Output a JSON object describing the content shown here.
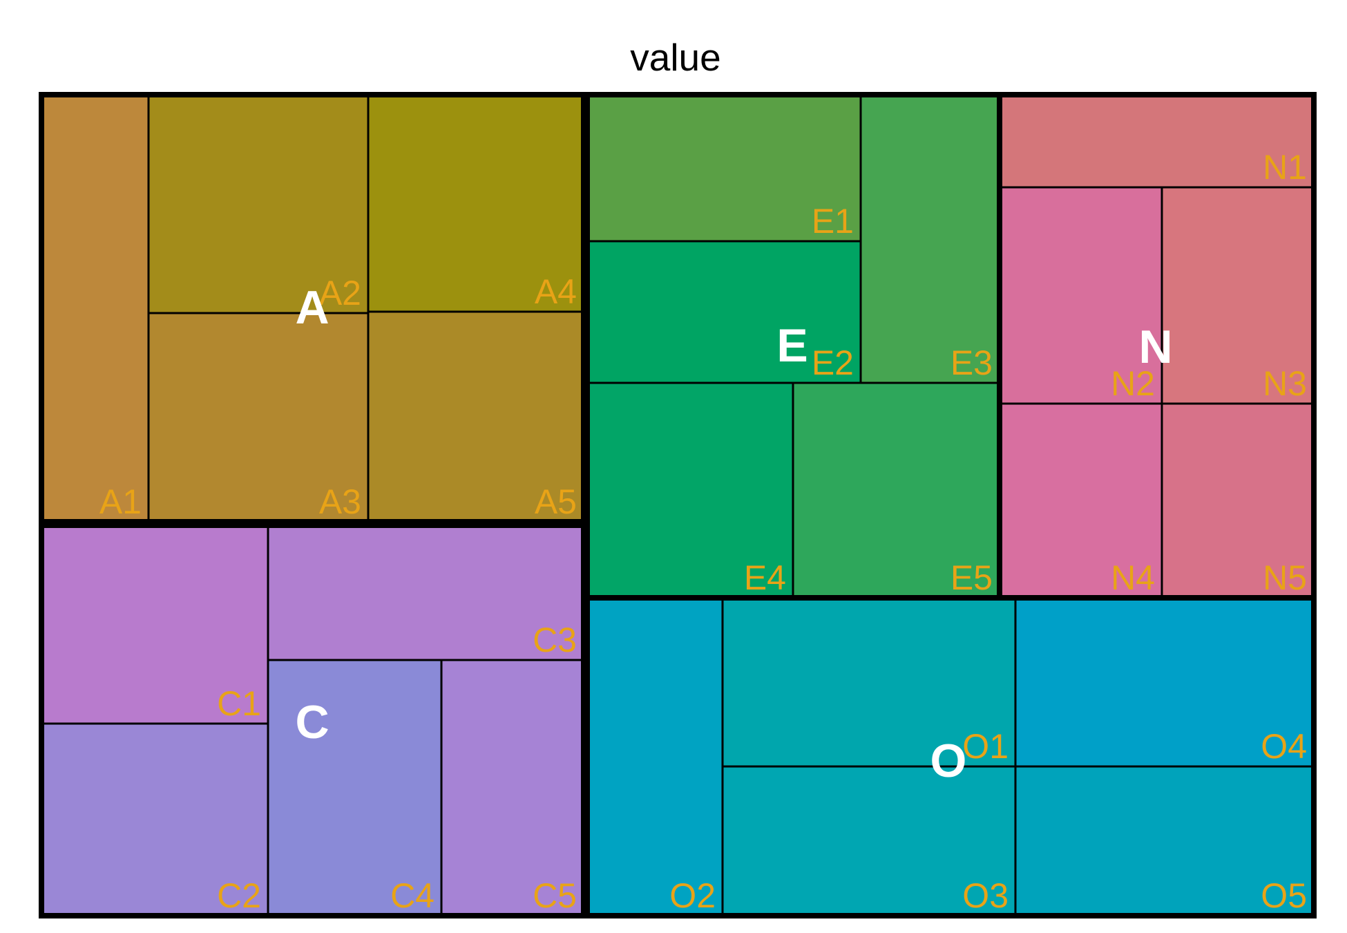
{
  "chart_data": {
    "type": "treemap",
    "title": "value",
    "leaf_label_color": "#E8A317",
    "group_label_color": "#FFFFFF",
    "groups": [
      {
        "name": "A",
        "children": [
          {
            "name": "A1",
            "value": 6.0,
            "color": "#BD883B"
          },
          {
            "name": "A2",
            "value": 6.2,
            "color": "#A38C1A"
          },
          {
            "name": "A3",
            "value": 6.0,
            "color": "#B2882F"
          },
          {
            "name": "A4",
            "value": 6.3,
            "color": "#9C910E"
          },
          {
            "name": "A5",
            "value": 6.0,
            "color": "#AB8A27"
          }
        ]
      },
      {
        "name": "C",
        "children": [
          {
            "name": "C1",
            "value": 5.7,
            "color": "#B87BCD"
          },
          {
            "name": "C2",
            "value": 5.6,
            "color": "#9A87D6"
          },
          {
            "name": "C3",
            "value": 5.6,
            "color": "#B07FD0"
          },
          {
            "name": "C4",
            "value": 4.8,
            "color": "#8A8AD7"
          },
          {
            "name": "C5",
            "value": 4.0,
            "color": "#A683D5"
          }
        ]
      },
      {
        "name": "E",
        "children": [
          {
            "name": "E1",
            "value": 5.2,
            "color": "#5AA045"
          },
          {
            "name": "E2",
            "value": 5.0,
            "color": "#00A463"
          },
          {
            "name": "E3",
            "value": 4.9,
            "color": "#46A551"
          },
          {
            "name": "E4",
            "value": 5.0,
            "color": "#02A567"
          },
          {
            "name": "E5",
            "value": 5.0,
            "color": "#2EA75B"
          }
        ]
      },
      {
        "name": "N",
        "children": [
          {
            "name": "N1",
            "value": 3.0,
            "color": "#D4767A"
          },
          {
            "name": "N2",
            "value": 4.2,
            "color": "#D86F9C"
          },
          {
            "name": "N3",
            "value": 4.1,
            "color": "#D7767E"
          },
          {
            "name": "N4",
            "value": 4.0,
            "color": "#D86FA0"
          },
          {
            "name": "N5",
            "value": 4.0,
            "color": "#D77289"
          }
        ]
      },
      {
        "name": "O",
        "children": [
          {
            "name": "O2",
            "value": 4.5,
            "color": "#00A3C2"
          },
          {
            "name": "O1",
            "value": 6.0,
            "color": "#00A6AD"
          },
          {
            "name": "O3",
            "value": 6.0,
            "color": "#00A6B2"
          },
          {
            "name": "O4",
            "value": 6.0,
            "color": "#00A0C8"
          },
          {
            "name": "O5",
            "value": 6.0,
            "color": "#00A3BB"
          }
        ]
      }
    ]
  }
}
